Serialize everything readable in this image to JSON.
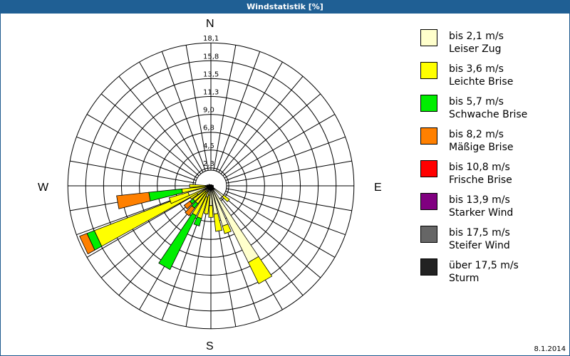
{
  "window": {
    "title": "Windstatistik [%]"
  },
  "footer": {
    "date": "8.1.2014"
  },
  "compass": {
    "n": "N",
    "e": "E",
    "s": "S",
    "w": "W"
  },
  "legend": [
    {
      "color": "#ffffcc",
      "line1": "bis 2,1 m/s",
      "line2": "Leiser Zug"
    },
    {
      "color": "#ffff00",
      "line1": "bis 3,6 m/s",
      "line2": "Leichte Brise"
    },
    {
      "color": "#00ee00",
      "line1": "bis 5,7 m/s",
      "line2": "Schwache Brise"
    },
    {
      "color": "#ff8000",
      "line1": "bis 8,2 m/s",
      "line2": "Mäßige Brise"
    },
    {
      "color": "#ff0000",
      "line1": "bis 10,8 m/s",
      "line2": "Frische Brise"
    },
    {
      "color": "#800080",
      "line1": "bis 13,9 m/s",
      "line2": "Starker Wind"
    },
    {
      "color": "#666666",
      "line1": "bis 17,5 m/s",
      "line2": "Steifer Wind"
    },
    {
      "color": "#222222",
      "line1": "über 17,5 m/s",
      "line2": "Sturm"
    }
  ],
  "chart_data": {
    "type": "polar-stacked-bar",
    "title": "Windstatistik [%]",
    "radial_ticks": [
      "2,3",
      "4,5",
      "6,8",
      "9,0",
      "11,3",
      "13,5",
      "15,8",
      "18,1"
    ],
    "rmax": 18.1,
    "sector_width_deg": 10,
    "series_names": [
      "bis 2,1 m/s",
      "bis 3,6 m/s",
      "bis 5,7 m/s",
      "bis 8,2 m/s",
      "bis 10,8 m/s",
      "bis 13,9 m/s",
      "bis 17,5 m/s",
      "über 17,5 m/s"
    ],
    "sectors": [
      {
        "dir": 80,
        "values": [
          0.3,
          0.0,
          0,
          0,
          0,
          0,
          0,
          0
        ]
      },
      {
        "dir": 90,
        "values": [
          0.3,
          0.0,
          0,
          0,
          0,
          0,
          0,
          0
        ]
      },
      {
        "dir": 100,
        "values": [
          0.3,
          0.0,
          0,
          0,
          0,
          0,
          0,
          0
        ]
      },
      {
        "dir": 110,
        "values": [
          0.3,
          0.0,
          0,
          0,
          0,
          0,
          0,
          0
        ]
      },
      {
        "dir": 120,
        "values": [
          0.3,
          0.0,
          0,
          0,
          0,
          0,
          0,
          0
        ]
      },
      {
        "dir": 130,
        "values": [
          2.0,
          0.9,
          0,
          0,
          0,
          0,
          0,
          0
        ]
      },
      {
        "dir": 140,
        "values": [
          0.6,
          0.0,
          0,
          0,
          0,
          0,
          0,
          0
        ]
      },
      {
        "dir": 150,
        "values": [
          10.8,
          3.0,
          0,
          0,
          0,
          0,
          0,
          0
        ]
      },
      {
        "dir": 160,
        "values": [
          5.3,
          1.0,
          0,
          0,
          0,
          0,
          0,
          0
        ]
      },
      {
        "dir": 170,
        "values": [
          3.6,
          2.2,
          0,
          0,
          0,
          0,
          0,
          0
        ]
      },
      {
        "dir": 180,
        "values": [
          2.5,
          1.5,
          0,
          0,
          0,
          0,
          0,
          0
        ]
      },
      {
        "dir": 190,
        "values": [
          1.2,
          2.4,
          0,
          0,
          0,
          0,
          0,
          0
        ]
      },
      {
        "dir": 200,
        "values": [
          1.5,
          2.8,
          1.0,
          0,
          0,
          0,
          0,
          0
        ]
      },
      {
        "dir": 210,
        "values": [
          0.8,
          3.4,
          7.6,
          0,
          0,
          0,
          0,
          0
        ]
      },
      {
        "dir": 220,
        "values": [
          1.0,
          1.8,
          0.7,
          1.2,
          0,
          0,
          0,
          0
        ]
      },
      {
        "dir": 230,
        "values": [
          0.8,
          2.0,
          0.5,
          0.9,
          0,
          0,
          0,
          0
        ]
      },
      {
        "dir": 240,
        "values": [
          2.0,
          1.0,
          0,
          0,
          0,
          0,
          0,
          0
        ]
      },
      {
        "dir": 245,
        "values": [
          1.0,
          14.8,
          1.0,
          1.0,
          0,
          0,
          0,
          0
        ]
      },
      {
        "dir": 250,
        "values": [
          3.0,
          2.5,
          0,
          0,
          0,
          0,
          0,
          0
        ]
      },
      {
        "dir": 260,
        "values": [
          0.5,
          3.2,
          4.2,
          4.1,
          0,
          0,
          0,
          0
        ]
      },
      {
        "dir": 270,
        "values": [
          0.7,
          2.0,
          0,
          0,
          0,
          0,
          0,
          0
        ]
      },
      {
        "dir": 280,
        "values": [
          0.5,
          0.0,
          0,
          0,
          0,
          0,
          0,
          0
        ]
      },
      {
        "dir": 290,
        "values": [
          0.3,
          0.0,
          0,
          0,
          0,
          0,
          0,
          0
        ]
      },
      {
        "dir": 300,
        "values": [
          0.3,
          0.0,
          0,
          0,
          0,
          0,
          0,
          0
        ]
      },
      {
        "dir": 310,
        "values": [
          0.3,
          0.0,
          0,
          0,
          0,
          0,
          0,
          0
        ]
      }
    ],
    "legend_position": "right",
    "grid": true
  }
}
